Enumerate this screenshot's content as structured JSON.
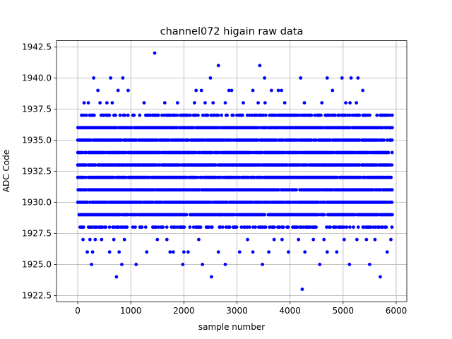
{
  "chart_data": {
    "type": "scatter",
    "title": "channel072 higain raw data",
    "xlabel": "sample number",
    "ylabel": "ADC Code",
    "xlim": [
      -400,
      6200
    ],
    "ylim": [
      1922.0,
      1943.0
    ],
    "x_ticks": [
      0,
      1000,
      2000,
      3000,
      4000,
      5000,
      6000
    ],
    "x_tick_labels": [
      "0",
      "1000",
      "2000",
      "3000",
      "4000",
      "5000",
      "6000"
    ],
    "y_ticks": [
      1922.5,
      1925.0,
      1927.5,
      1930.0,
      1932.5,
      1935.0,
      1937.5,
      1940.0,
      1942.5
    ],
    "y_tick_labels": [
      "1922.5",
      "1925.0",
      "1927.5",
      "1930.0",
      "1932.5",
      "1935.0",
      "1937.5",
      "1940.0",
      "1942.5"
    ],
    "grid": true,
    "marker_color": "#0000ff",
    "sample_range": [
      0,
      5920
    ],
    "dense_levels": [
      1929,
      1930,
      1931,
      1932,
      1933,
      1934,
      1935,
      1936
    ],
    "medium_levels": [
      1928,
      1937
    ],
    "sparse_points": [
      [
        300,
        1940
      ],
      [
        620,
        1940
      ],
      [
        850,
        1940
      ],
      [
        2500,
        1940
      ],
      [
        3520,
        1940
      ],
      [
        4200,
        1940
      ],
      [
        4700,
        1940
      ],
      [
        4980,
        1940
      ],
      [
        5150,
        1940
      ],
      [
        5280,
        1940
      ],
      [
        2650,
        1941
      ],
      [
        3430,
        1941
      ],
      [
        1450,
        1942
      ],
      [
        120,
        1938
      ],
      [
        200,
        1938
      ],
      [
        380,
        1939
      ],
      [
        420,
        1938
      ],
      [
        550,
        1938
      ],
      [
        650,
        1938
      ],
      [
        760,
        1939
      ],
      [
        950,
        1939
      ],
      [
        1250,
        1938
      ],
      [
        1640,
        1938
      ],
      [
        1880,
        1938
      ],
      [
        2200,
        1938
      ],
      [
        2230,
        1939
      ],
      [
        2330,
        1939
      ],
      [
        2400,
        1938
      ],
      [
        2550,
        1938
      ],
      [
        2780,
        1938
      ],
      [
        2850,
        1939
      ],
      [
        2900,
        1939
      ],
      [
        3120,
        1938
      ],
      [
        3300,
        1939
      ],
      [
        3400,
        1938
      ],
      [
        3530,
        1938
      ],
      [
        3650,
        1939
      ],
      [
        3780,
        1939
      ],
      [
        3840,
        1939
      ],
      [
        3900,
        1938
      ],
      [
        4270,
        1938
      ],
      [
        4600,
        1938
      ],
      [
        4800,
        1939
      ],
      [
        5050,
        1938
      ],
      [
        5130,
        1938
      ],
      [
        5250,
        1938
      ],
      [
        5370,
        1939
      ],
      [
        100,
        1927
      ],
      [
        180,
        1926
      ],
      [
        230,
        1927
      ],
      [
        260,
        1925
      ],
      [
        280,
        1926
      ],
      [
        330,
        1927
      ],
      [
        450,
        1927
      ],
      [
        600,
        1926
      ],
      [
        680,
        1927
      ],
      [
        730,
        1924
      ],
      [
        780,
        1926
      ],
      [
        830,
        1925
      ],
      [
        880,
        1927
      ],
      [
        1100,
        1925
      ],
      [
        1300,
        1926
      ],
      [
        1500,
        1927
      ],
      [
        1680,
        1927
      ],
      [
        1740,
        1926
      ],
      [
        1800,
        1926
      ],
      [
        1980,
        1925
      ],
      [
        2000,
        1926
      ],
      [
        2080,
        1926
      ],
      [
        2280,
        1927
      ],
      [
        2350,
        1925
      ],
      [
        2520,
        1924
      ],
      [
        2650,
        1926
      ],
      [
        2780,
        1925
      ],
      [
        3050,
        1926
      ],
      [
        3200,
        1927
      ],
      [
        3300,
        1926
      ],
      [
        3480,
        1925
      ],
      [
        3600,
        1926
      ],
      [
        3700,
        1927
      ],
      [
        3850,
        1927
      ],
      [
        3970,
        1926
      ],
      [
        4160,
        1927
      ],
      [
        4230,
        1923
      ],
      [
        4280,
        1926
      ],
      [
        4440,
        1927
      ],
      [
        4560,
        1925
      ],
      [
        4640,
        1927
      ],
      [
        4700,
        1926
      ],
      [
        4880,
        1926
      ],
      [
        5020,
        1927
      ],
      [
        5120,
        1925
      ],
      [
        5260,
        1927
      ],
      [
        5440,
        1927
      ],
      [
        5500,
        1925
      ],
      [
        5600,
        1927
      ],
      [
        5700,
        1924
      ],
      [
        5830,
        1926
      ],
      [
        5900,
        1927
      ]
    ]
  }
}
